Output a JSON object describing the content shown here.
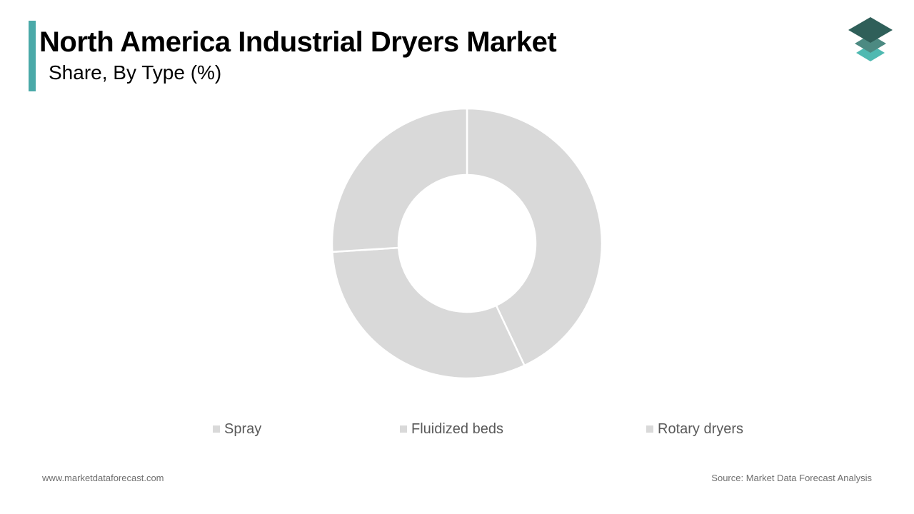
{
  "header": {
    "title": "North America Industrial Dryers Market",
    "subtitle": "Share, By Type (%)"
  },
  "colors": {
    "accent": "#4aa9a8",
    "slice": "#d9d9d9",
    "slice_border": "#ffffff",
    "logo_dark": "#2f5f59",
    "logo_mid": "#4c8a82",
    "logo_light": "#4fb9b1"
  },
  "chart_data": {
    "type": "pie",
    "variant": "donut",
    "categories": [
      "Spray",
      "Fluidized beds",
      "Rotary dryers"
    ],
    "values": [
      43,
      31,
      26
    ],
    "legend_position": "bottom"
  },
  "footer": {
    "website": "www.marketdataforecast.com",
    "source": "Source: Market Data Forecast Analysis"
  },
  "logo": {
    "icon": "stacked-layers-icon"
  }
}
